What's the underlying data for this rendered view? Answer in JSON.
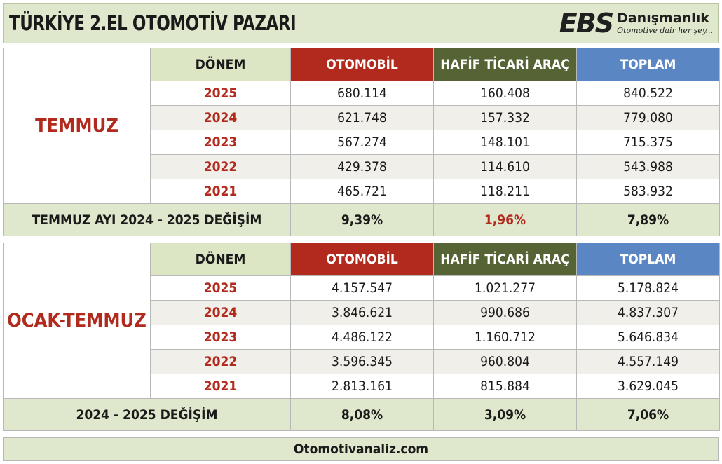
{
  "header": {
    "title": "TÜRKİYE 2.EL OTOMOTİV PAZARI",
    "logo_mark": "EBS",
    "logo_name": "Danışmanlık",
    "logo_tagline": "Otomotive dair her şey..."
  },
  "columns": {
    "period": "DÖNEM",
    "car": "OTOMOBİL",
    "lcv": "HAFİF TİCARİ ARAÇ",
    "total": "TOPLAM"
  },
  "sections": [
    {
      "label": "TEMMUZ",
      "rows": [
        {
          "year": "2025",
          "car": "680.114",
          "lcv": "160.408",
          "total": "840.522"
        },
        {
          "year": "2024",
          "car": "621.748",
          "lcv": "157.332",
          "total": "779.080"
        },
        {
          "year": "2023",
          "car": "567.274",
          "lcv": "148.101",
          "total": "715.375"
        },
        {
          "year": "2022",
          "car": "429.378",
          "lcv": "114.610",
          "total": "543.988"
        },
        {
          "year": "2021",
          "car": "465.721",
          "lcv": "118.211",
          "total": "583.932"
        }
      ],
      "change": {
        "label": "TEMMUZ AYI  2024 - 2025 DEĞİŞİM",
        "car": "9,39%",
        "lcv": "1,96%",
        "total": "7,89%"
      }
    },
    {
      "label": "OCAK-TEMMUZ",
      "rows": [
        {
          "year": "2025",
          "car": "4.157.547",
          "lcv": "1.021.277",
          "total": "5.178.824"
        },
        {
          "year": "2024",
          "car": "3.846.621",
          "lcv": "990.686",
          "total": "4.837.307"
        },
        {
          "year": "2023",
          "car": "4.486.122",
          "lcv": "1.160.712",
          "total": "5.646.834"
        },
        {
          "year": "2022",
          "car": "3.596.345",
          "lcv": "960.804",
          "total": "4.557.149"
        },
        {
          "year": "2021",
          "car": "2.813.161",
          "lcv": "815.884",
          "total": "3.629.045"
        }
      ],
      "change": {
        "label": "2024 - 2025 DEĞİŞİM",
        "car": "8,08%",
        "lcv": "3,09%",
        "total": "7,06%"
      }
    }
  ],
  "footer": {
    "text": "Otomotivanaliz.com"
  },
  "colors": {
    "car_header": "#b22a1d",
    "lcv_header": "#566335",
    "total_header": "#5b86c4",
    "accent_red": "#b22a1d",
    "band_green": "#dfe8cd"
  }
}
